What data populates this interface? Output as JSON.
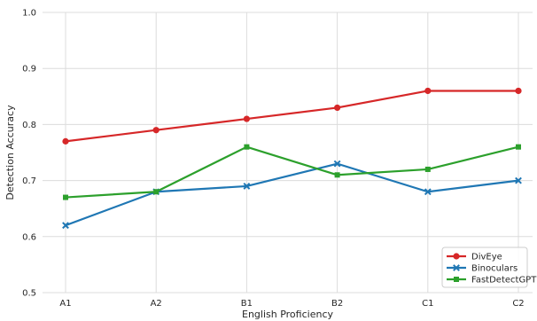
{
  "chart_data": {
    "type": "line",
    "title": "",
    "xlabel": "English Proficiency",
    "ylabel": "Detection Accuracy",
    "categories": [
      "A1",
      "A2",
      "B1",
      "B2",
      "C1",
      "C2"
    ],
    "ylim": [
      0.5,
      1.0
    ],
    "yticks": [
      "0.5",
      "0.6",
      "0.7",
      "0.8",
      "0.9",
      "1.0"
    ],
    "grid": true,
    "legend_position": "bottom-right",
    "series": [
      {
        "name": "DivEye",
        "color": "#d62728",
        "marker": "circle",
        "values": [
          0.77,
          0.79,
          0.81,
          0.83,
          0.86,
          0.86
        ]
      },
      {
        "name": "Binoculars",
        "color": "#1f77b4",
        "marker": "x",
        "values": [
          0.62,
          0.68,
          0.69,
          0.73,
          0.68,
          0.7
        ]
      },
      {
        "name": "FastDetectGPT",
        "color": "#2ca02c",
        "marker": "square",
        "values": [
          0.67,
          0.68,
          0.76,
          0.71,
          0.72,
          0.76
        ]
      }
    ]
  }
}
